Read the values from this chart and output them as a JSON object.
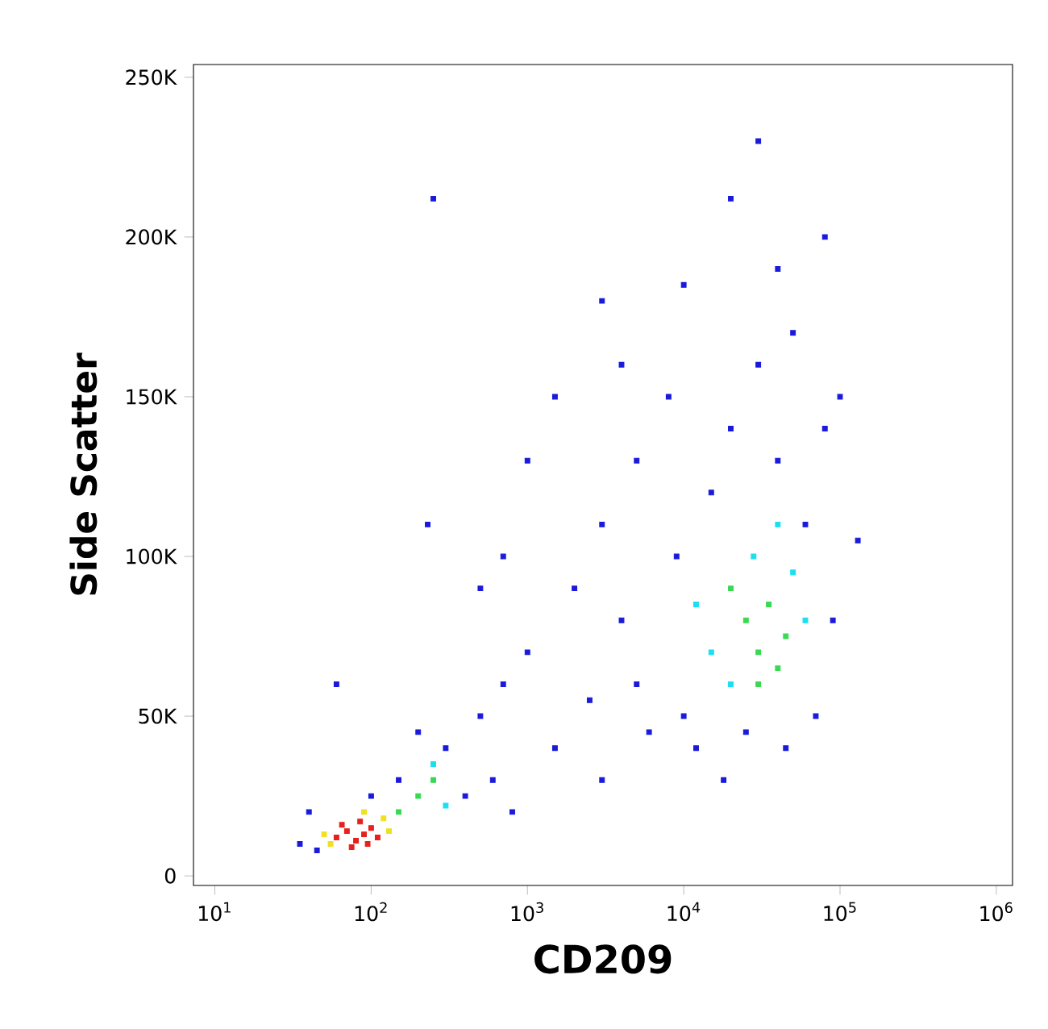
{
  "chart_data": {
    "type": "scatter",
    "xlabel": "CD209",
    "ylabel": "Side Scatter",
    "log": "x",
    "marker": "square",
    "xlim": [
      7.3,
      1270000
    ],
    "ylim": [
      -3000,
      254000
    ],
    "xticks": [
      {
        "value": 10,
        "label": "10$^{1}$"
      },
      {
        "value": 100,
        "label": "10$^{2}$"
      },
      {
        "value": 1000,
        "label": "10$^{3}$"
      },
      {
        "value": 10000,
        "label": "10$^{4}$"
      },
      {
        "value": 100000,
        "label": "10$^{5}$"
      },
      {
        "value": 1000000,
        "label": "10$^{6}$"
      }
    ],
    "yticks": [
      0,
      {
        "value": 50000,
        "label": "50K"
      },
      {
        "value": 100000,
        "label": "100K"
      },
      {
        "value": 150000,
        "label": "150K"
      },
      {
        "value": 200000,
        "label": "200K"
      },
      {
        "value": 250000,
        "label": "250K"
      }
    ],
    "series": [
      {
        "color": "#1a1adc",
        "x": [
          35,
          40,
          45,
          150,
          200,
          300,
          400,
          500,
          700,
          600,
          1000,
          1500,
          2000,
          2500,
          3000,
          4000,
          5000,
          6000,
          8000,
          10000,
          12000,
          15000,
          20000,
          25000,
          30000,
          40000,
          50000,
          60000,
          70000,
          80000,
          100000,
          130000,
          60,
          250,
          3000,
          30000,
          40000,
          80000,
          230,
          20000,
          1000,
          500,
          3000,
          800,
          5000,
          9000,
          18000,
          45000,
          90000,
          100,
          700,
          1500,
          4000,
          10000
        ],
        "values": [
          10000,
          20000,
          8000,
          30000,
          45000,
          40000,
          25000,
          50000,
          60000,
          30000,
          70000,
          40000,
          90000,
          55000,
          110000,
          80000,
          130000,
          45000,
          150000,
          50000,
          40000,
          120000,
          140000,
          45000,
          160000,
          130000,
          170000,
          110000,
          50000,
          140000,
          150000,
          105000,
          60000,
          212000,
          180000,
          230000,
          190000,
          200000,
          110000,
          212000,
          130000,
          90000,
          30000,
          20000,
          60000,
          100000,
          30000,
          40000,
          80000,
          25000,
          100000,
          150000,
          160000,
          185000
        ]
      },
      {
        "color": "#19e0f0",
        "x": [
          250,
          300,
          15000,
          50000,
          20000,
          40000,
          60000,
          12000,
          28000
        ],
        "values": [
          35000,
          22000,
          70000,
          95000,
          60000,
          110000,
          80000,
          85000,
          100000
        ]
      },
      {
        "color": "#39d952",
        "x": [
          200,
          250,
          30000,
          25000,
          40000,
          20000,
          35000,
          45000,
          150,
          30000
        ],
        "values": [
          25000,
          30000,
          70000,
          80000,
          65000,
          90000,
          85000,
          75000,
          20000,
          60000
        ]
      },
      {
        "color": "#f0e020",
        "x": [
          50,
          120,
          130,
          55,
          90
        ],
        "values": [
          13000,
          18000,
          14000,
          10000,
          20000
        ]
      },
      {
        "color": "#e8201c",
        "x": [
          60,
          70,
          80,
          90,
          100,
          75,
          110,
          65,
          85,
          95
        ],
        "values": [
          12000,
          14000,
          11000,
          13000,
          15000,
          9000,
          12000,
          16000,
          17000,
          10000
        ]
      }
    ]
  }
}
